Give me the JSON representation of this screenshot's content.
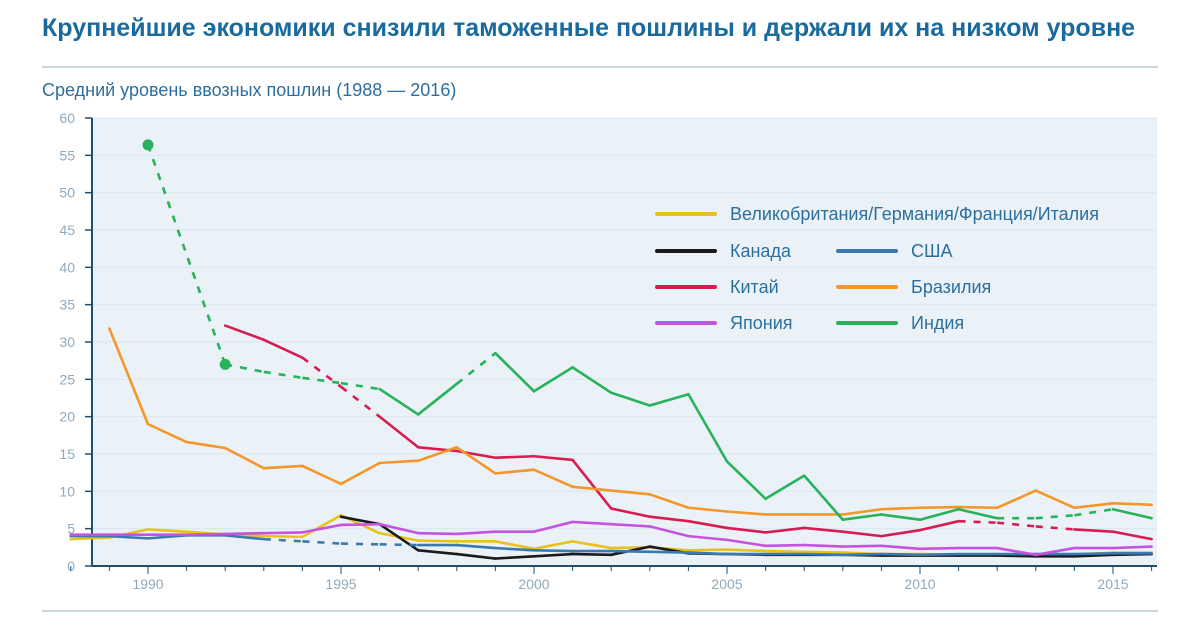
{
  "title": "Крупнейшие экономики снизили таможенные пошлины и держали их на низком уровне",
  "subtitle": "Средний уровень ввозных пошлин (1988 — 2016)",
  "colors": {
    "background": "#eaf2f8",
    "axis": "#1f4f70",
    "tick": "#8fa9bd",
    "title": "#1a6a9e"
  },
  "chart_data": {
    "type": "line",
    "title": "Средний уровень ввозных пошлин (1988 — 2016)",
    "xlim": [
      1988,
      2016
    ],
    "ylim": [
      0,
      60
    ],
    "x_ticks": [
      1990,
      1995,
      2000,
      2005,
      2010,
      2015
    ],
    "y_ticks": [
      0,
      5,
      10,
      15,
      20,
      25,
      30,
      35,
      40,
      45,
      50,
      55,
      60
    ],
    "legend_position": "top-right",
    "series": [
      {
        "name": "Великобритания/Германия/Франция/Италия",
        "color": "#e8c21a",
        "points": [
          [
            1988,
            3.6
          ],
          [
            1989,
            3.8
          ],
          [
            1990,
            4.9
          ],
          [
            1991,
            4.6
          ],
          [
            1992,
            4.2
          ],
          [
            1993,
            4.0
          ],
          [
            1994,
            3.9
          ],
          [
            1995,
            6.8
          ],
          [
            1996,
            4.4
          ],
          [
            1997,
            3.4
          ],
          [
            1998,
            3.3
          ],
          [
            1999,
            3.3
          ],
          [
            2000,
            2.3
          ],
          [
            2001,
            3.3
          ],
          [
            2002,
            2.4
          ],
          [
            2003,
            2.5
          ],
          [
            2004,
            2.1
          ],
          [
            2005,
            2.2
          ],
          [
            2006,
            2.0
          ],
          [
            2007,
            1.9
          ],
          [
            2008,
            1.8
          ],
          [
            2009,
            1.6
          ],
          [
            2010,
            1.6
          ],
          [
            2011,
            1.5
          ],
          [
            2012,
            1.5
          ],
          [
            2013,
            1.4
          ],
          [
            2014,
            1.5
          ],
          [
            2015,
            1.8
          ],
          [
            2016,
            1.8
          ]
        ],
        "dashed_segments": []
      },
      {
        "name": "Канада",
        "color": "#1a1a1a",
        "points": [
          [
            1995,
            6.6
          ],
          [
            1996,
            5.6
          ],
          [
            1997,
            2.1
          ],
          [
            1998,
            1.6
          ],
          [
            1999,
            1.0
          ],
          [
            2000,
            1.3
          ],
          [
            2001,
            1.6
          ],
          [
            2002,
            1.5
          ],
          [
            2003,
            2.6
          ],
          [
            2004,
            1.7
          ],
          [
            2005,
            1.6
          ],
          [
            2006,
            1.5
          ],
          [
            2007,
            1.5
          ],
          [
            2008,
            1.5
          ],
          [
            2009,
            1.4
          ],
          [
            2010,
            1.4
          ],
          [
            2011,
            1.4
          ],
          [
            2012,
            1.4
          ],
          [
            2013,
            1.3
          ],
          [
            2014,
            1.3
          ],
          [
            2015,
            1.5
          ],
          [
            2016,
            1.6
          ]
        ],
        "dashed_segments": []
      },
      {
        "name": "США",
        "color": "#3a7ab0",
        "points": [
          [
            1988,
            4.0
          ],
          [
            1989,
            4.0
          ],
          [
            1990,
            3.7
          ],
          [
            1991,
            4.1
          ],
          [
            1992,
            4.1
          ],
          [
            1993,
            3.6
          ],
          [
            1994,
            3.3
          ],
          [
            1995,
            3.0
          ],
          [
            1996,
            2.9
          ],
          [
            1997,
            2.8
          ],
          [
            1998,
            2.8
          ],
          [
            1999,
            2.4
          ],
          [
            2000,
            2.1
          ],
          [
            2001,
            2.0
          ],
          [
            2002,
            2.0
          ],
          [
            2003,
            1.9
          ],
          [
            2004,
            1.8
          ],
          [
            2005,
            1.6
          ],
          [
            2006,
            1.6
          ],
          [
            2007,
            1.6
          ],
          [
            2008,
            1.5
          ],
          [
            2009,
            1.6
          ],
          [
            2010,
            1.5
          ],
          [
            2011,
            1.6
          ],
          [
            2012,
            1.6
          ],
          [
            2013,
            1.6
          ],
          [
            2014,
            1.6
          ],
          [
            2015,
            1.7
          ],
          [
            2016,
            1.7
          ]
        ],
        "dashed_segments": [
          [
            1993,
            1997
          ]
        ]
      },
      {
        "name": "Китай",
        "color": "#d81b50",
        "points": [
          [
            1992,
            32.2
          ],
          [
            1993,
            30.3
          ],
          [
            1994,
            27.9
          ],
          [
            1995,
            24.0
          ],
          [
            1996,
            20.0
          ],
          [
            1997,
            15.9
          ],
          [
            1998,
            15.4
          ],
          [
            1999,
            14.5
          ],
          [
            2000,
            14.7
          ],
          [
            2001,
            14.2
          ],
          [
            2002,
            7.7
          ],
          [
            2003,
            6.6
          ],
          [
            2004,
            6.0
          ],
          [
            2005,
            5.1
          ],
          [
            2006,
            4.5
          ],
          [
            2007,
            5.1
          ],
          [
            2008,
            4.6
          ],
          [
            2009,
            4.0
          ],
          [
            2010,
            4.8
          ],
          [
            2011,
            6.0
          ],
          [
            2012,
            5.8
          ],
          [
            2013,
            5.3
          ],
          [
            2014,
            4.9
          ],
          [
            2015,
            4.6
          ],
          [
            2016,
            3.6
          ]
        ],
        "dashed_segments": [
          [
            1994,
            1996
          ],
          [
            2011,
            2014
          ]
        ]
      },
      {
        "name": "Бразилия",
        "color": "#f5962a",
        "points": [
          [
            1989,
            31.8
          ],
          [
            1990,
            19.0
          ],
          [
            1991,
            16.6
          ],
          [
            1992,
            15.8
          ],
          [
            1993,
            13.1
          ],
          [
            1994,
            13.4
          ],
          [
            1995,
            11.0
          ],
          [
            1996,
            13.8
          ],
          [
            1997,
            14.1
          ],
          [
            1998,
            15.9
          ],
          [
            1999,
            12.4
          ],
          [
            2000,
            12.9
          ],
          [
            2001,
            10.6
          ],
          [
            2002,
            10.1
          ],
          [
            2003,
            9.6
          ],
          [
            2004,
            7.8
          ],
          [
            2005,
            7.3
          ],
          [
            2006,
            6.9
          ],
          [
            2007,
            6.9
          ],
          [
            2008,
            6.9
          ],
          [
            2009,
            7.6
          ],
          [
            2010,
            7.8
          ],
          [
            2011,
            7.9
          ],
          [
            2012,
            7.8
          ],
          [
            2013,
            10.1
          ],
          [
            2014,
            7.8
          ],
          [
            2015,
            8.4
          ],
          [
            2016,
            8.2
          ]
        ],
        "dashed_segments": []
      },
      {
        "name": "Япония",
        "color": "#c653e0",
        "points": [
          [
            1988,
            4.2
          ],
          [
            1989,
            4.2
          ],
          [
            1990,
            4.2
          ],
          [
            1991,
            4.2
          ],
          [
            1992,
            4.3
          ],
          [
            1993,
            4.4
          ],
          [
            1994,
            4.5
          ],
          [
            1995,
            5.5
          ],
          [
            1996,
            5.6
          ],
          [
            1997,
            4.4
          ],
          [
            1998,
            4.3
          ],
          [
            1999,
            4.6
          ],
          [
            2000,
            4.6
          ],
          [
            2001,
            5.9
          ],
          [
            2002,
            5.6
          ],
          [
            2003,
            5.3
          ],
          [
            2004,
            4.0
          ],
          [
            2005,
            3.5
          ],
          [
            2006,
            2.7
          ],
          [
            2007,
            2.8
          ],
          [
            2008,
            2.6
          ],
          [
            2009,
            2.7
          ],
          [
            2010,
            2.3
          ],
          [
            2011,
            2.4
          ],
          [
            2012,
            2.4
          ],
          [
            2013,
            1.5
          ],
          [
            2014,
            2.4
          ],
          [
            2015,
            2.4
          ],
          [
            2016,
            2.6
          ]
        ],
        "dashed_segments": []
      },
      {
        "name": "Индия",
        "color": "#27b25b",
        "points": [
          [
            1990,
            56.4
          ],
          [
            1992,
            27.0
          ],
          [
            1993,
            26.0
          ],
          [
            1994,
            25.2
          ],
          [
            1995,
            24.5
          ],
          [
            1996,
            23.7
          ],
          [
            1997,
            20.3
          ],
          [
            1998,
            24.4
          ],
          [
            1999,
            28.5
          ],
          [
            2000,
            23.4
          ],
          [
            2001,
            26.6
          ],
          [
            2002,
            23.2
          ],
          [
            2003,
            21.5
          ],
          [
            2004,
            23.0
          ],
          [
            2005,
            14.0
          ],
          [
            2006,
            9.0
          ],
          [
            2007,
            12.1
          ],
          [
            2008,
            6.2
          ],
          [
            2009,
            6.9
          ],
          [
            2010,
            6.2
          ],
          [
            2011,
            7.6
          ],
          [
            2012,
            6.4
          ],
          [
            2013,
            6.4
          ],
          [
            2014,
            6.8
          ],
          [
            2015,
            7.6
          ],
          [
            2016,
            6.4
          ]
        ],
        "dashed_segments": [
          [
            1990,
            1996
          ],
          [
            1998,
            1999
          ],
          [
            2012,
            2015
          ]
        ],
        "markers": [
          1990,
          1992
        ]
      }
    ]
  }
}
